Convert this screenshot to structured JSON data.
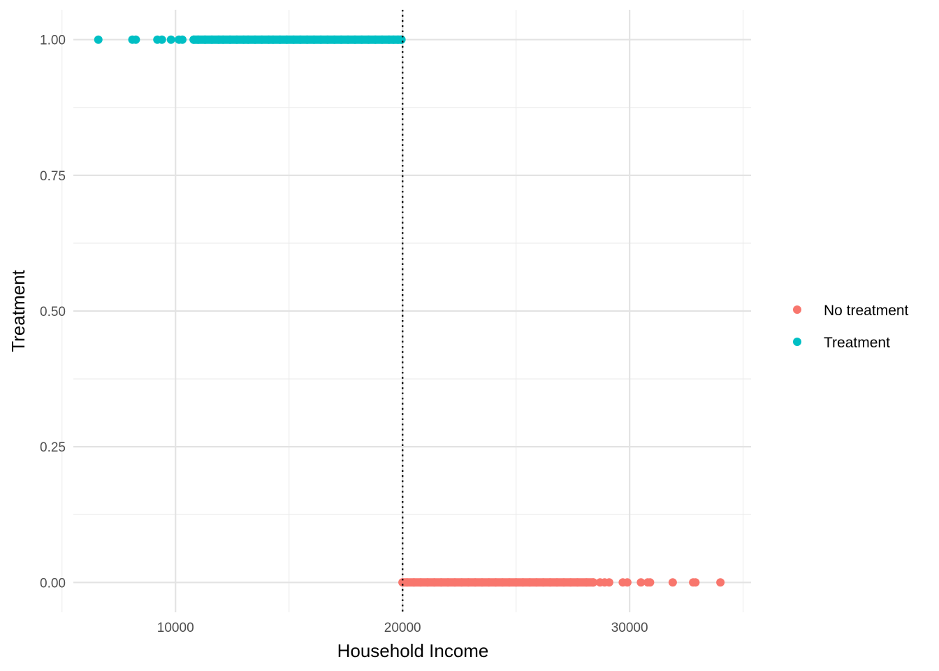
{
  "chart_data": {
    "type": "scatter",
    "title": "",
    "xlabel": "Household Income",
    "ylabel": "Treatment",
    "xlim": [
      5500,
      35350
    ],
    "ylim": [
      -0.055,
      1.055
    ],
    "x_ticks": [
      {
        "value": 10000,
        "label": "10000"
      },
      {
        "value": 20000,
        "label": "20000"
      },
      {
        "value": 30000,
        "label": "30000"
      }
    ],
    "x_minor_ticks": [
      5000,
      15000,
      25000,
      35000
    ],
    "y_ticks": [
      {
        "value": 0.0,
        "label": "0.00"
      },
      {
        "value": 0.25,
        "label": "0.25"
      },
      {
        "value": 0.5,
        "label": "0.50"
      },
      {
        "value": 0.75,
        "label": "0.75"
      },
      {
        "value": 1.0,
        "label": "1.00"
      }
    ],
    "y_minor_ticks": [
      0.125,
      0.375,
      0.625,
      0.875
    ],
    "grid": true,
    "cutoff_line": {
      "x": 20000,
      "style": "dotted",
      "color": "#000000"
    },
    "legend": {
      "position": "right",
      "entries": [
        {
          "label": "No treatment",
          "color": "#F8766D"
        },
        {
          "label": "Treatment",
          "color": "#00BFC4"
        }
      ]
    },
    "series": [
      {
        "name": "Treatment",
        "color": "#00BFC4",
        "y": 1,
        "x": [
          6600,
          8100,
          8250,
          9200,
          9400,
          9800,
          10150,
          10300,
          10800,
          11000,
          11300,
          11600,
          11900,
          12100,
          12400,
          12700,
          13000,
          13200,
          13500,
          13800,
          14100,
          14300,
          14600,
          14900,
          15200,
          15500,
          15800,
          16100,
          16400,
          16700,
          17000,
          17300,
          17600,
          17900,
          18200,
          18500,
          18800,
          19100,
          19400,
          19600,
          19800,
          19950
        ]
      },
      {
        "name": "No treatment",
        "color": "#F8766D",
        "y": 0,
        "x": [
          20000,
          20200,
          20500,
          20800,
          21100,
          21400,
          21700,
          22000,
          22300,
          22600,
          22900,
          23200,
          23500,
          23800,
          24100,
          24400,
          24700,
          25000,
          25300,
          25600,
          25900,
          26200,
          26500,
          26800,
          27100,
          27400,
          27700,
          28100,
          28400,
          28700,
          28900,
          29100,
          29700,
          29900,
          30500,
          30800,
          30900,
          31900,
          32800,
          32900,
          34000
        ]
      }
    ]
  }
}
